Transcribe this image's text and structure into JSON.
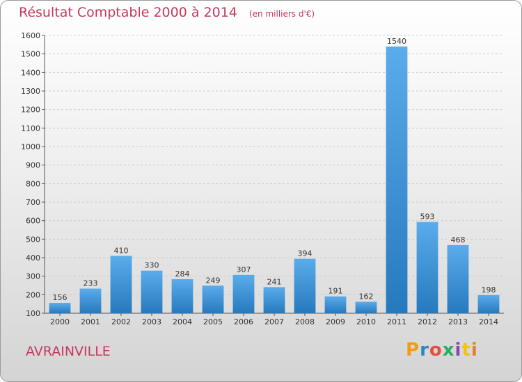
{
  "chart_data": {
    "type": "bar",
    "title": "Résultat Comptable 2000 à 2014",
    "subtitle": "(en milliers d'€)",
    "categories": [
      "2000",
      "2001",
      "2002",
      "2003",
      "2004",
      "2005",
      "2006",
      "2007",
      "2008",
      "2009",
      "2010",
      "2011",
      "2012",
      "2013",
      "2014"
    ],
    "values": [
      156,
      233,
      410,
      330,
      284,
      249,
      307,
      241,
      394,
      191,
      162,
      1540,
      593,
      468,
      198
    ],
    "ylim": [
      100,
      1600
    ],
    "yticks": [
      100,
      200,
      300,
      400,
      500,
      600,
      700,
      800,
      900,
      1000,
      1100,
      1200,
      1300,
      1400,
      1500,
      1600
    ],
    "grid": true,
    "bar_color_light": "#5aaceb",
    "bar_color_dark": "#2679bd"
  },
  "footer": {
    "commune": "AVRAINVILLE",
    "logo_text": "Proxiti",
    "logo_colors": [
      "#f39c12",
      "#2e86c1",
      "#e74c3c",
      "#27ae60",
      "#8e44ad",
      "#f1c40f",
      "#e67e22"
    ]
  },
  "colors": {
    "title": "#c7375a",
    "axis_text": "#333333"
  }
}
